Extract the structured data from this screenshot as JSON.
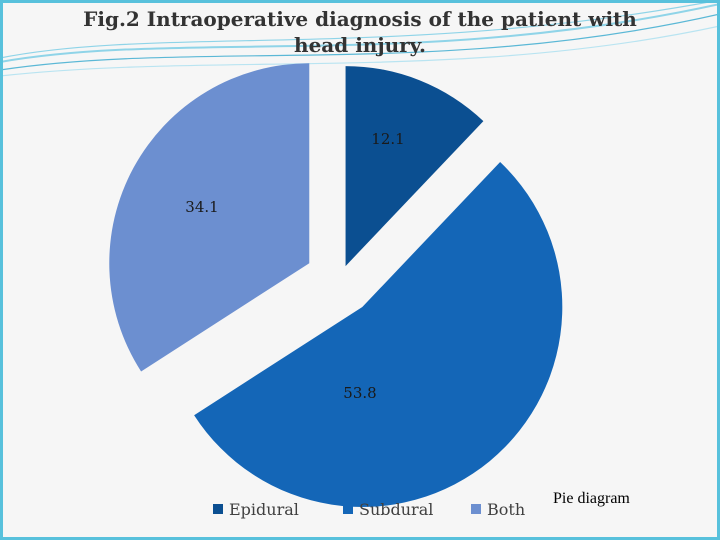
{
  "chart_data": {
    "type": "pie",
    "title": "Fig.2 Intraoperative diagnosis of the patient with head injury.",
    "categories": [
      "Epidural",
      "Subdural",
      "Both"
    ],
    "values": [
      12.1,
      53.8,
      34.1
    ],
    "data_labels": [
      "12.1",
      "53.8",
      "34.1"
    ],
    "exploded": true,
    "legend_position": "bottom",
    "colors": [
      "#0B4F91",
      "#1466B7",
      "#6C8FD0"
    ]
  },
  "caption": "Pie diagram",
  "theme": {
    "background": "#F6F6F6",
    "frame_border": "#58C1DC",
    "wave_colors": [
      "#8FD4E8",
      "#5BB8D6",
      "#B9E4F1"
    ],
    "title_color": "#333333",
    "label_color": "#1a1a1a"
  }
}
